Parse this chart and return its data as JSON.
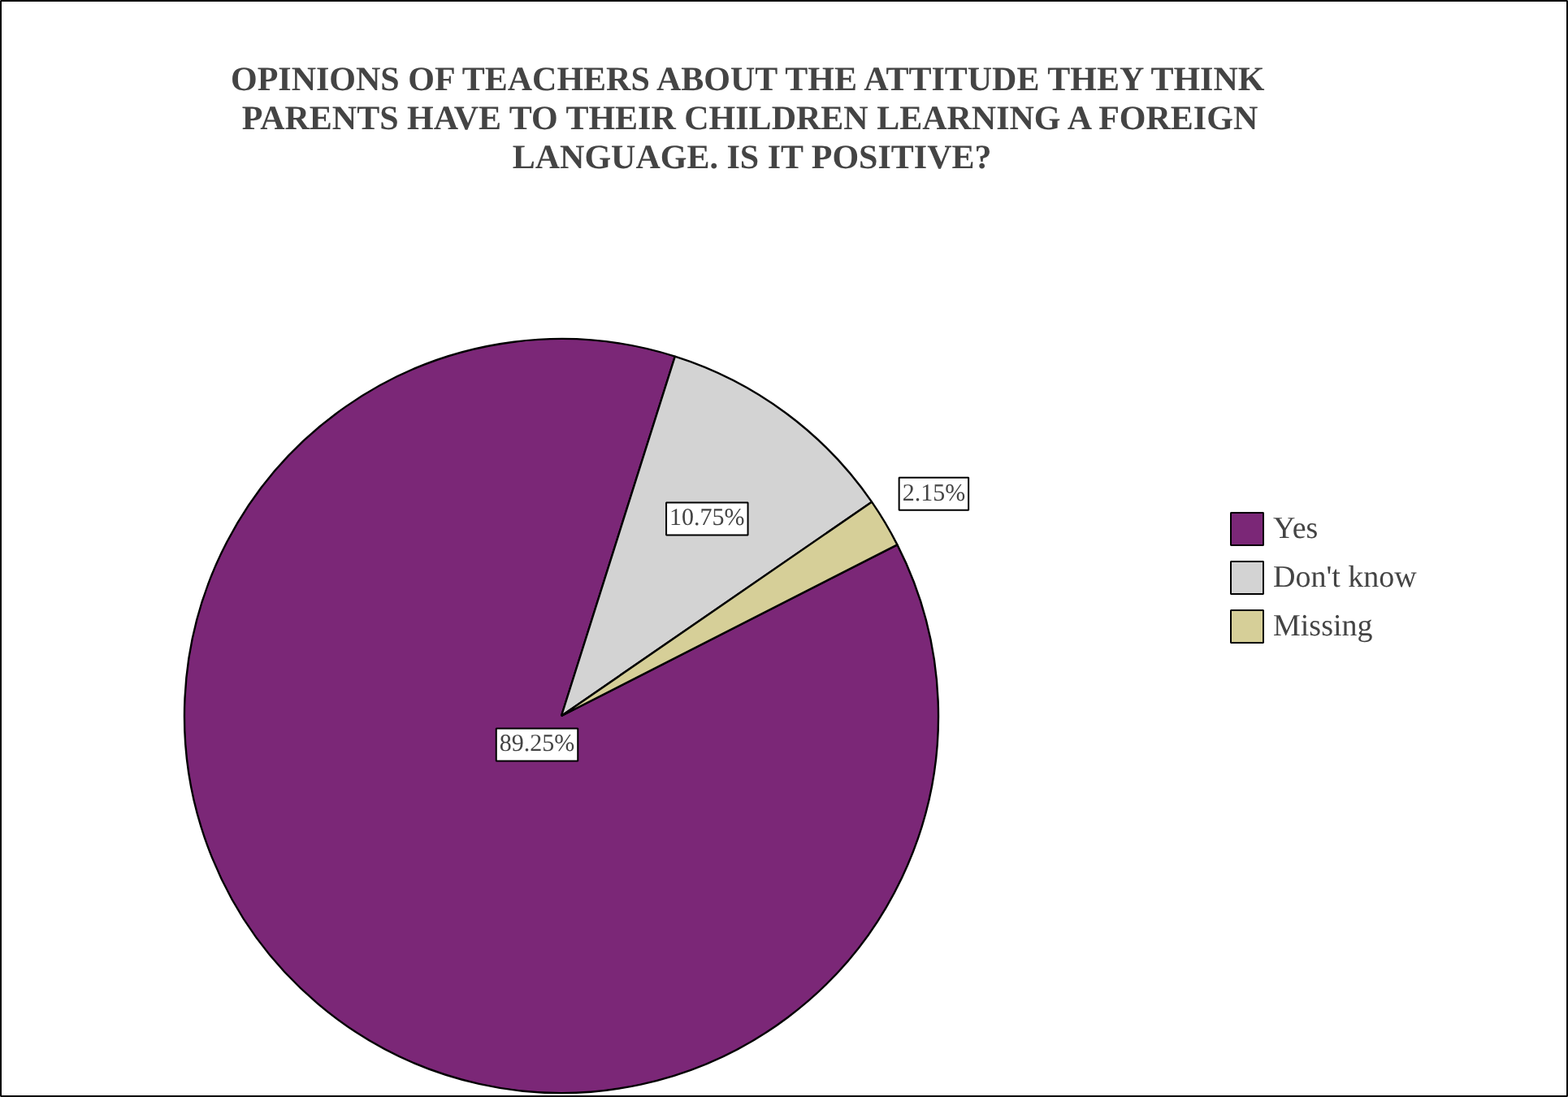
{
  "chart_data": {
    "type": "pie",
    "title": "OPINIONS OF TEACHERS ABOUT THE ATTITUDE THEY THINK PARENTS HAVE TO THEIR CHILDREN LEARNING A FOREIGN LANGUAGE. IS IT POSITIVE?",
    "categories": [
      "Yes",
      "Don't know",
      "Missing"
    ],
    "values": [
      89.25,
      10.75,
      2.15
    ],
    "colors": [
      "#7b2777",
      "#d3d3d3",
      "#d6cf98"
    ],
    "value_labels": [
      "89.25%",
      "10.75%",
      "2.15%"
    ],
    "legend": "right"
  }
}
